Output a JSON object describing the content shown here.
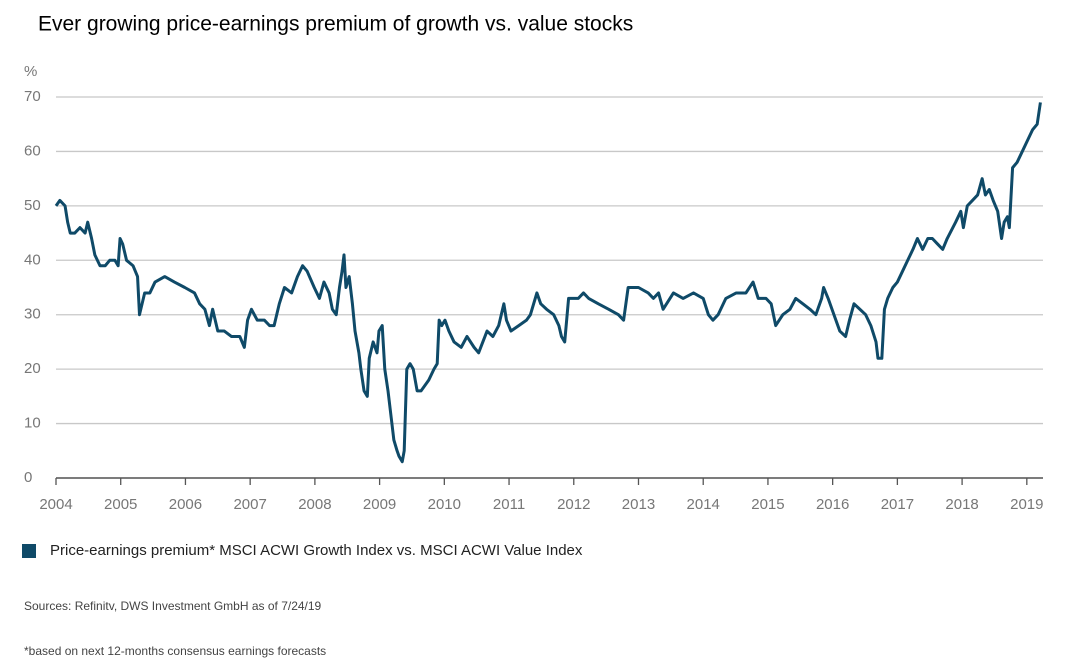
{
  "chart_data": {
    "type": "line",
    "title": "Ever growing price-earnings premium of growth vs. value stocks",
    "ylabel": "%",
    "x": [
      2004.0,
      2004.06,
      2004.14,
      2004.18,
      2004.22,
      2004.29,
      2004.37,
      2004.45,
      2004.49,
      2004.55,
      2004.6,
      2004.68,
      2004.76,
      2004.83,
      2004.91,
      2004.96,
      2004.99,
      2005.03,
      2005.09,
      2005.19,
      2005.26,
      2005.29,
      2005.37,
      2005.45,
      2005.53,
      2005.68,
      2005.83,
      2005.99,
      2006.14,
      2006.22,
      2006.3,
      2006.37,
      2006.42,
      2006.5,
      2006.6,
      2006.71,
      2006.84,
      2006.91,
      2006.96,
      2007.02,
      2007.11,
      2007.22,
      2007.3,
      2007.37,
      2007.45,
      2007.53,
      2007.64,
      2007.73,
      2007.81,
      2007.88,
      2007.99,
      2008.07,
      2008.14,
      2008.22,
      2008.27,
      2008.33,
      2008.38,
      2008.42,
      2008.45,
      2008.48,
      2008.53,
      2008.58,
      2008.62,
      2008.68,
      2008.71,
      2008.76,
      2008.81,
      2008.84,
      2008.9,
      2008.96,
      2008.99,
      2009.04,
      2009.08,
      2009.13,
      2009.18,
      2009.22,
      2009.27,
      2009.3,
      2009.35,
      2009.38,
      2009.42,
      2009.47,
      2009.52,
      2009.58,
      2009.64,
      2009.76,
      2009.84,
      2009.89,
      2009.92,
      2009.96,
      2010.01,
      2010.07,
      2010.15,
      2010.26,
      2010.35,
      2010.46,
      2010.53,
      2010.66,
      2010.75,
      2010.84,
      2010.92,
      2010.96,
      2011.03,
      2011.15,
      2011.27,
      2011.33,
      2011.43,
      2011.49,
      2011.58,
      2011.69,
      2011.77,
      2011.81,
      2011.86,
      2011.92,
      2012.07,
      2012.15,
      2012.23,
      2012.38,
      2012.54,
      2012.69,
      2012.77,
      2012.84,
      2013.0,
      2013.15,
      2013.23,
      2013.31,
      2013.38,
      2013.54,
      2013.69,
      2013.85,
      2014.0,
      2014.08,
      2014.15,
      2014.23,
      2014.35,
      2014.51,
      2014.66,
      2014.77,
      2014.85,
      2014.97,
      2015.05,
      2015.12,
      2015.23,
      2015.34,
      2015.43,
      2015.54,
      2015.65,
      2015.74,
      2015.83,
      2015.86,
      2015.93,
      2016.02,
      2016.11,
      2016.2,
      2016.26,
      2016.33,
      2016.42,
      2016.51,
      2016.59,
      2016.67,
      2016.7,
      2016.76,
      2016.8,
      2016.85,
      2016.93,
      2017.0,
      2017.08,
      2017.16,
      2017.24,
      2017.31,
      2017.39,
      2017.47,
      2017.54,
      2017.62,
      2017.7,
      2017.77,
      2017.9,
      2017.98,
      2018.02,
      2018.08,
      2018.16,
      2018.24,
      2018.31,
      2018.36,
      2018.42,
      2018.48,
      2018.55,
      2018.61,
      2018.65,
      2018.7,
      2018.73,
      2018.78,
      2018.85,
      2018.93,
      2019.01,
      2019.09,
      2019.16,
      2019.21
    ],
    "series": [
      {
        "name": "Price-earnings premium* MSCI ACWI Growth Index vs. MSCI ACWI Value Index",
        "color": "#0f4a68",
        "values": [
          50,
          51,
          50,
          47,
          45,
          45,
          46,
          45,
          47,
          44,
          41,
          39,
          39,
          40,
          40,
          39,
          44,
          43,
          40,
          39,
          37,
          30,
          34,
          34,
          36,
          37,
          36,
          35,
          34,
          32,
          31,
          28,
          31,
          27,
          27,
          26,
          26,
          24,
          29,
          31,
          29,
          29,
          28,
          28,
          32,
          35,
          34,
          37,
          39,
          38,
          35,
          33,
          36,
          34,
          31,
          30,
          35,
          38,
          41,
          35,
          37,
          32,
          27,
          23,
          20,
          16,
          15,
          22,
          25,
          23,
          27,
          28,
          20,
          16,
          11,
          7,
          5,
          4,
          3,
          5,
          20,
          21,
          20,
          16,
          16,
          18,
          20,
          21,
          29,
          28,
          29,
          27,
          25,
          24,
          26,
          24,
          23,
          27,
          26,
          28,
          32,
          29,
          27,
          28,
          29,
          30,
          34,
          32,
          31,
          30,
          28,
          26,
          25,
          33,
          33,
          34,
          33,
          32,
          31,
          30,
          29,
          35,
          35,
          34,
          33,
          34,
          31,
          34,
          33,
          34,
          33,
          30,
          29,
          30,
          33,
          34,
          34,
          36,
          33,
          33,
          32,
          28,
          30,
          31,
          33,
          32,
          31,
          30,
          33,
          35,
          33,
          30,
          27,
          26,
          29,
          32,
          31,
          30,
          28,
          25,
          22,
          22,
          31,
          33,
          35,
          36,
          38,
          40,
          42,
          44,
          42,
          44,
          44,
          43,
          42,
          44,
          47,
          49,
          46,
          50,
          51,
          52,
          55,
          52,
          53,
          51,
          49,
          44,
          47,
          48,
          46,
          57,
          58,
          60,
          62,
          64,
          65,
          69
        ]
      }
    ],
    "xlim": [
      2004,
      2019.25
    ],
    "ylim": [
      0,
      70
    ],
    "xticks": [
      2004,
      2005,
      2006,
      2007,
      2008,
      2009,
      2010,
      2011,
      2012,
      2013,
      2014,
      2015,
      2016,
      2017,
      2018,
      2019
    ],
    "yticks": [
      0,
      10,
      20,
      30,
      40,
      50,
      60,
      70
    ],
    "grid": true,
    "source": "Sources: Refinitv, DWS Investment GmbH as of 7/24/19",
    "footnote": "*based on next 12-months consensus earnings forecasts"
  }
}
